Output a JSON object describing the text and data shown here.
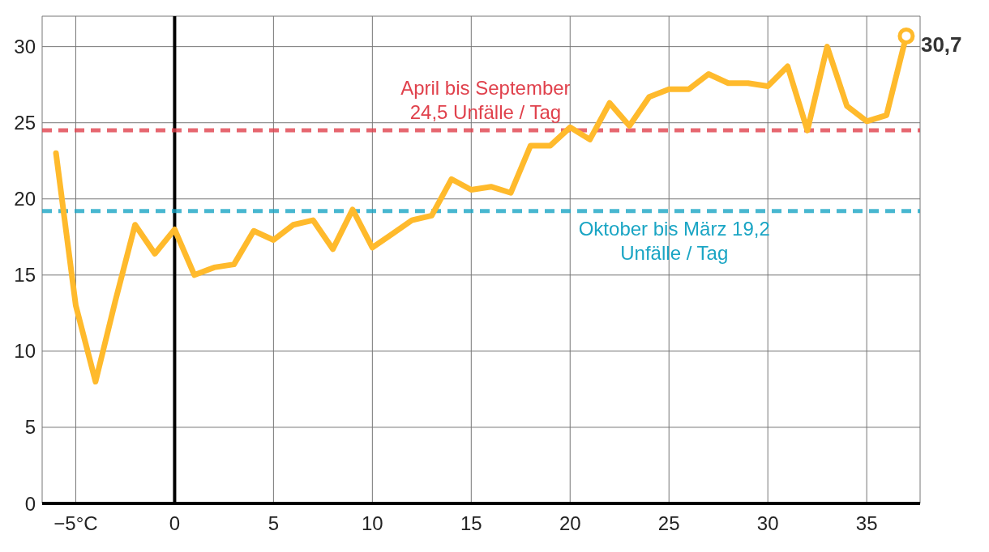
{
  "chart_data": {
    "type": "line",
    "x": [
      -6,
      -5,
      -4,
      -3,
      -2,
      -1,
      0,
      1,
      2,
      3,
      4,
      5,
      6,
      7,
      8,
      9,
      10,
      11,
      12,
      13,
      14,
      15,
      16,
      17,
      18,
      19,
      20,
      21,
      22,
      23,
      24,
      25,
      26,
      27,
      28,
      29,
      30,
      31,
      32,
      33,
      34,
      35,
      36,
      37
    ],
    "series": [
      {
        "color": "#ffba2c",
        "values": [
          23.0,
          13.0,
          8.0,
          13.3,
          18.3,
          16.4,
          18.0,
          15.0,
          15.5,
          15.7,
          17.9,
          17.3,
          18.3,
          18.6,
          16.7,
          19.3,
          16.8,
          17.7,
          18.6,
          18.9,
          21.3,
          20.6,
          20.8,
          20.4,
          23.5,
          23.5,
          24.7,
          23.9,
          26.3,
          24.8,
          26.7,
          27.2,
          27.2,
          28.2,
          27.6,
          27.6,
          27.4,
          28.7,
          24.5,
          30.0,
          26.1,
          25.1,
          25.5,
          30.7
        ],
        "value_labels": [
          null,
          null,
          null,
          null,
          null,
          null,
          null,
          null,
          null,
          null,
          null,
          null,
          null,
          null,
          null,
          null,
          null,
          null,
          null,
          null,
          null,
          null,
          null,
          null,
          null,
          null,
          null,
          null,
          null,
          null,
          null,
          null,
          null,
          null,
          null,
          null,
          null,
          null,
          null,
          null,
          null,
          null,
          null,
          "30,7"
        ]
      }
    ],
    "xlim": [
      -6.7,
      37.7
    ],
    "ylim": [
      0,
      32
    ],
    "xticks": [
      {
        "value": -5,
        "label": "−5°C"
      },
      0,
      5,
      10,
      15,
      20,
      25,
      30,
      35
    ],
    "yticks": [
      0,
      5,
      10,
      15,
      20,
      25,
      30
    ],
    "grid": true,
    "ref_lines": [
      {
        "axis": "x",
        "value": 0,
        "color": "#000000"
      },
      {
        "axis": "y",
        "value": 24.5,
        "label": "April bis September\n24,5 Unfälle / Tag",
        "color": "#e0414c",
        "line_style": "dashed"
      },
      {
        "axis": "y",
        "value": 19.2,
        "label": "Oktober bis März 19,2\nUnfälle / Tag",
        "color": "#1aa5c4",
        "line_style": "dashed"
      }
    ]
  }
}
